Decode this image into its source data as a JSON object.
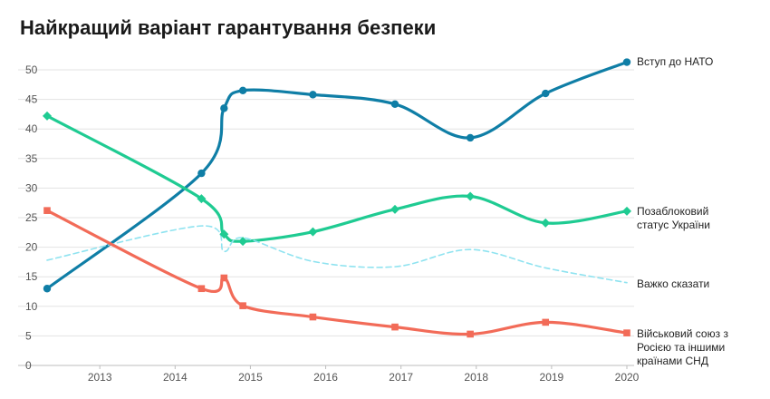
{
  "chart_data": {
    "type": "line",
    "title": "Найкращий варіант гарантування безпеки",
    "xlabel": "",
    "ylabel": "",
    "ylim": [
      0,
      50
    ],
    "xlim": [
      2012.3,
      2020
    ],
    "yticks": [
      0,
      5,
      10,
      15,
      20,
      25,
      30,
      35,
      40,
      45,
      50
    ],
    "xticks": [
      2013,
      2014,
      2015,
      2016,
      2017,
      2018,
      2019,
      2020
    ],
    "grid": "horizontal",
    "legend": "direct-labels-right",
    "series": [
      {
        "name": "Вступ до НАТО",
        "color": "#0f7ea6",
        "marker": "circle",
        "style": "solid",
        "x": [
          2012.3,
          2014.35,
          2014.65,
          2014.9,
          2015.83,
          2016.92,
          2017.92,
          2018.92,
          2020
        ],
        "values": [
          13,
          32.5,
          43.5,
          46.5,
          45.8,
          44.2,
          38.5,
          46,
          51.3
        ]
      },
      {
        "name": "Позаблоковий статус України",
        "color": "#1fcb92",
        "marker": "diamond",
        "style": "solid",
        "x": [
          2012.3,
          2014.35,
          2014.65,
          2014.9,
          2015.83,
          2016.92,
          2017.92,
          2018.92,
          2020
        ],
        "values": [
          42.2,
          28.2,
          22.2,
          21,
          22.6,
          26.4,
          28.6,
          24.1,
          26.1
        ]
      },
      {
        "name": "Важко сказати",
        "color": "#8fe3f0",
        "marker": "none",
        "style": "dashed",
        "x": [
          2012.3,
          2014.35,
          2014.65,
          2014.9,
          2015.83,
          2016.92,
          2017.92,
          2018.92,
          2020
        ],
        "values": [
          17.8,
          23.6,
          19.3,
          21.6,
          17.6,
          16.7,
          19.6,
          16.5,
          14
        ]
      },
      {
        "name": "Військовий союз з Росією та іншими країнами СНД",
        "label_lines": [
          "Військовий союз з",
          "Росією та іншими",
          "країнами СНД"
        ],
        "color": "#f26b58",
        "marker": "square",
        "style": "solid",
        "x": [
          2012.3,
          2014.35,
          2014.65,
          2014.9,
          2015.83,
          2016.92,
          2017.92,
          2018.92,
          2020
        ],
        "values": [
          26.2,
          13,
          14.8,
          10.1,
          8.2,
          6.5,
          5.3,
          7.3,
          5.5
        ]
      }
    ]
  }
}
